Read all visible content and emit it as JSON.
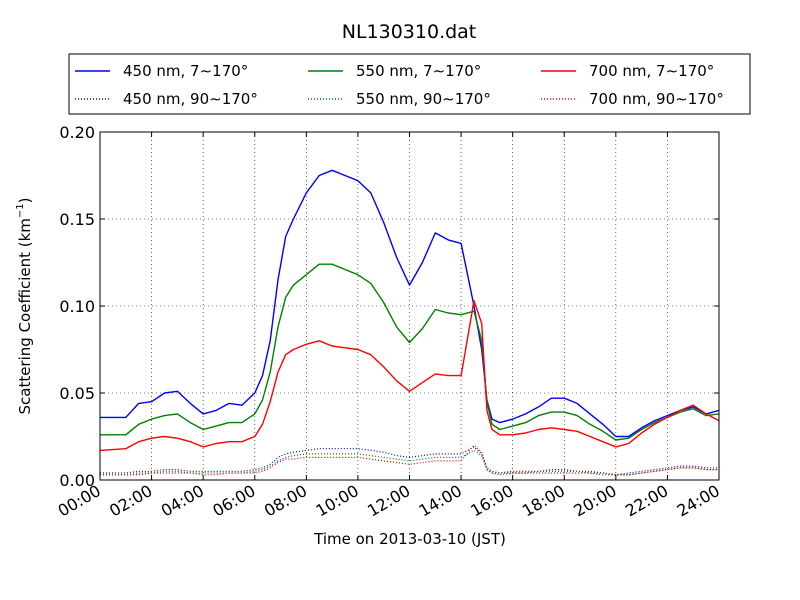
{
  "chart_data": {
    "type": "line",
    "title": "NL130310.dat",
    "xlabel": "Time on 2013-03-10 (JST)",
    "ylabel_prefix": "Scattering Coefficient (km",
    "ylabel_sup": "−1",
    "ylabel_suffix": ")",
    "xlim": [
      0,
      24
    ],
    "ylim": [
      0,
      0.2
    ],
    "grid": true,
    "legend_position": "top",
    "x_ticks": [
      0,
      2,
      4,
      6,
      8,
      10,
      12,
      14,
      16,
      18,
      20,
      22,
      24
    ],
    "x_tick_labels": [
      "00:00",
      "02:00",
      "04:00",
      "06:00",
      "08:00",
      "10:00",
      "12:00",
      "14:00",
      "16:00",
      "18:00",
      "20:00",
      "22:00",
      "24:00"
    ],
    "y_ticks": [
      0,
      0.05,
      0.1,
      0.15,
      0.2
    ],
    "y_tick_labels": [
      "0.00",
      "0.05",
      "0.10",
      "0.15",
      "0.20"
    ],
    "x": [
      0,
      1,
      1.5,
      2,
      2.5,
      3,
      3.5,
      4,
      4.5,
      5,
      5.5,
      6,
      6.3,
      6.6,
      6.9,
      7.2,
      7.5,
      8,
      8.5,
      9,
      9.5,
      10,
      10.5,
      11,
      11.5,
      12,
      12.5,
      13,
      13.5,
      14,
      14.5,
      14.8,
      15,
      15.2,
      15.5,
      16,
      16.5,
      17,
      17.5,
      18,
      18.5,
      19,
      19.5,
      20,
      20.5,
      21,
      21.5,
      22,
      22.5,
      23,
      23.5,
      24
    ],
    "series": [
      {
        "name": "450 nm, 7∼170°",
        "color": "#0000ff",
        "style": "solid",
        "values": [
          0.036,
          0.036,
          0.044,
          0.045,
          0.05,
          0.051,
          0.044,
          0.038,
          0.04,
          0.044,
          0.043,
          0.05,
          0.06,
          0.08,
          0.115,
          0.14,
          0.15,
          0.165,
          0.175,
          0.178,
          0.175,
          0.172,
          0.165,
          0.148,
          0.128,
          0.112,
          0.125,
          0.142,
          0.138,
          0.136,
          0.1,
          0.075,
          0.046,
          0.035,
          0.033,
          0.035,
          0.038,
          0.042,
          0.047,
          0.047,
          0.044,
          0.038,
          0.032,
          0.025,
          0.025,
          0.03,
          0.034,
          0.037,
          0.04,
          0.042,
          0.038,
          0.04
        ]
      },
      {
        "name": "550 nm, 7∼170°",
        "color": "#008000",
        "style": "solid",
        "values": [
          0.026,
          0.026,
          0.032,
          0.035,
          0.037,
          0.038,
          0.033,
          0.029,
          0.031,
          0.033,
          0.033,
          0.038,
          0.046,
          0.062,
          0.088,
          0.105,
          0.112,
          0.118,
          0.124,
          0.124,
          0.121,
          0.118,
          0.113,
          0.102,
          0.088,
          0.079,
          0.087,
          0.098,
          0.096,
          0.095,
          0.097,
          0.08,
          0.045,
          0.032,
          0.029,
          0.031,
          0.033,
          0.037,
          0.039,
          0.039,
          0.037,
          0.032,
          0.028,
          0.023,
          0.024,
          0.029,
          0.033,
          0.036,
          0.039,
          0.041,
          0.037,
          0.038
        ]
      },
      {
        "name": "700 nm, 7∼170°",
        "color": "#ff0000",
        "style": "solid",
        "values": [
          0.017,
          0.018,
          0.022,
          0.024,
          0.025,
          0.024,
          0.022,
          0.019,
          0.021,
          0.022,
          0.022,
          0.025,
          0.032,
          0.045,
          0.062,
          0.072,
          0.075,
          0.078,
          0.08,
          0.077,
          0.076,
          0.075,
          0.072,
          0.065,
          0.057,
          0.051,
          0.056,
          0.061,
          0.06,
          0.06,
          0.103,
          0.09,
          0.04,
          0.029,
          0.026,
          0.026,
          0.027,
          0.029,
          0.03,
          0.029,
          0.028,
          0.025,
          0.022,
          0.019,
          0.021,
          0.027,
          0.032,
          0.036,
          0.04,
          0.043,
          0.038,
          0.034
        ]
      },
      {
        "name": "450 nm, 90∼170°",
        "color": "#0000ff",
        "style": "dotted",
        "values": [
          0.004,
          0.004,
          0.005,
          0.005,
          0.006,
          0.006,
          0.005,
          0.005,
          0.005,
          0.005,
          0.005,
          0.006,
          0.007,
          0.009,
          0.013,
          0.015,
          0.016,
          0.017,
          0.018,
          0.018,
          0.018,
          0.018,
          0.017,
          0.016,
          0.014,
          0.013,
          0.014,
          0.015,
          0.015,
          0.015,
          0.019,
          0.015,
          0.007,
          0.005,
          0.004,
          0.005,
          0.005,
          0.005,
          0.006,
          0.006,
          0.005,
          0.005,
          0.004,
          0.003,
          0.004,
          0.005,
          0.006,
          0.007,
          0.008,
          0.008,
          0.007,
          0.007
        ]
      },
      {
        "name": "550 nm, 90∼170°",
        "color": "#008000",
        "style": "dotted",
        "values": [
          0.003,
          0.003,
          0.004,
          0.004,
          0.005,
          0.005,
          0.004,
          0.004,
          0.004,
          0.004,
          0.004,
          0.005,
          0.006,
          0.008,
          0.011,
          0.013,
          0.014,
          0.015,
          0.015,
          0.015,
          0.015,
          0.015,
          0.014,
          0.013,
          0.012,
          0.011,
          0.012,
          0.013,
          0.013,
          0.013,
          0.017,
          0.014,
          0.006,
          0.004,
          0.004,
          0.004,
          0.004,
          0.005,
          0.005,
          0.005,
          0.005,
          0.004,
          0.004,
          0.003,
          0.003,
          0.004,
          0.005,
          0.006,
          0.007,
          0.007,
          0.006,
          0.006
        ]
      },
      {
        "name": "700 nm, 90∼170°",
        "color": "#ff0000",
        "style": "dotted",
        "values": [
          0.003,
          0.003,
          0.003,
          0.004,
          0.004,
          0.004,
          0.004,
          0.003,
          0.003,
          0.004,
          0.004,
          0.004,
          0.005,
          0.007,
          0.01,
          0.012,
          0.012,
          0.013,
          0.013,
          0.013,
          0.013,
          0.013,
          0.012,
          0.011,
          0.01,
          0.009,
          0.01,
          0.011,
          0.011,
          0.011,
          0.02,
          0.016,
          0.006,
          0.004,
          0.003,
          0.004,
          0.004,
          0.004,
          0.004,
          0.004,
          0.004,
          0.004,
          0.003,
          0.003,
          0.003,
          0.004,
          0.005,
          0.006,
          0.007,
          0.007,
          0.006,
          0.006
        ]
      }
    ]
  }
}
